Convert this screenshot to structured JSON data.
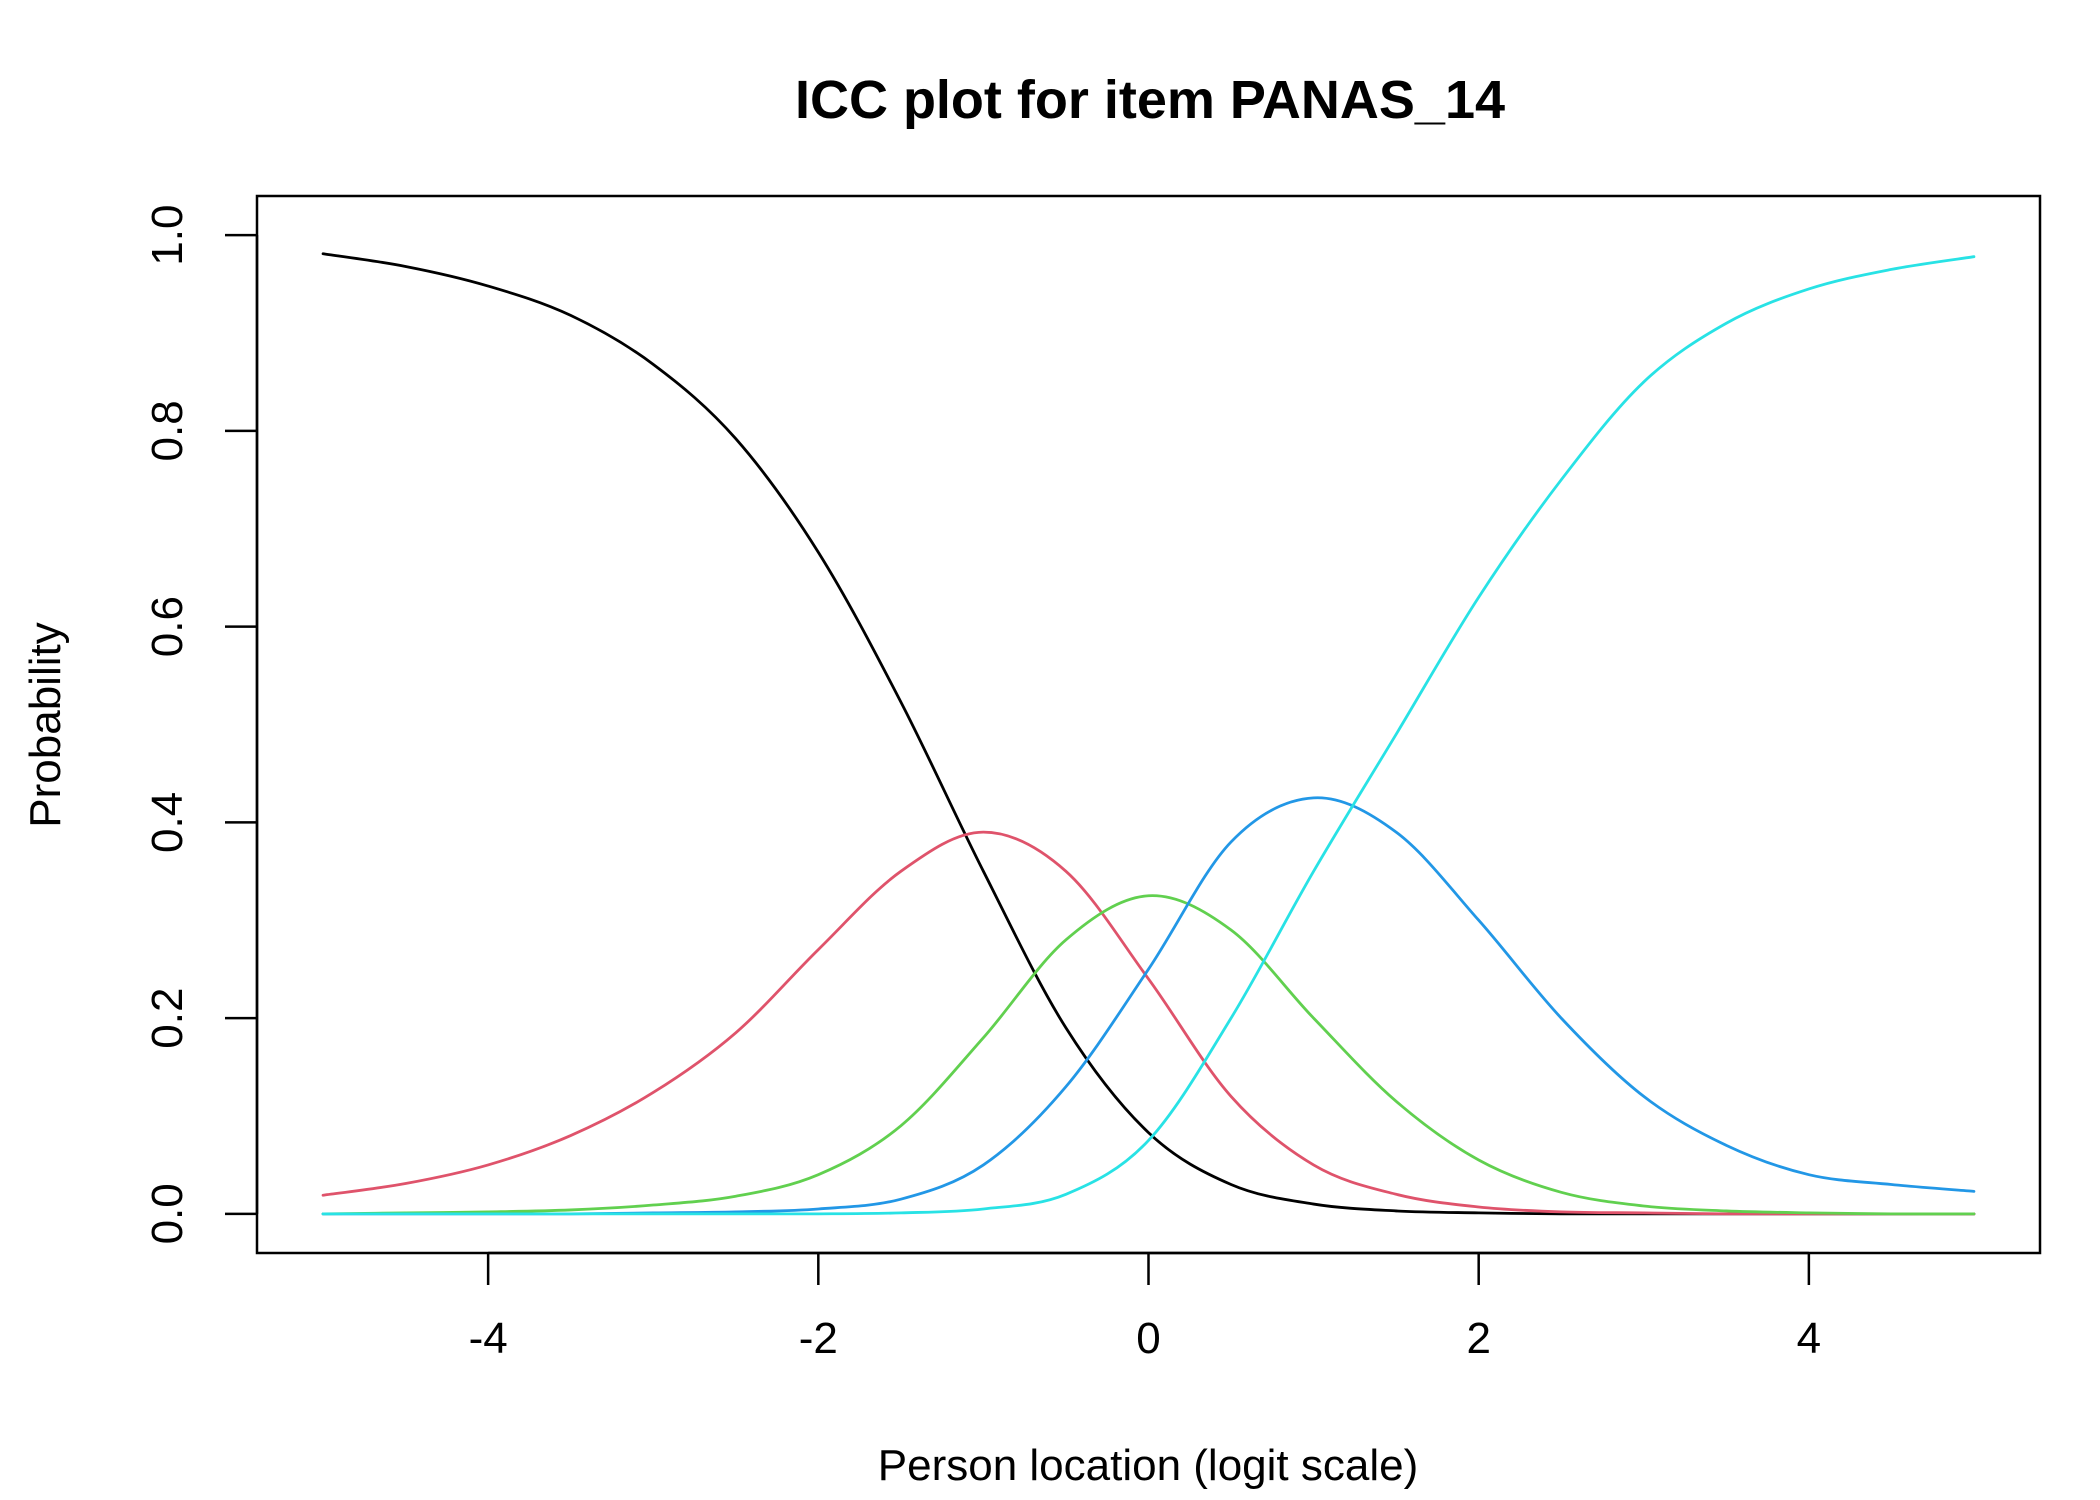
{
  "chart_data": {
    "type": "line",
    "title": "ICC plot for item PANAS_14",
    "xlabel": "Person location (logit scale)",
    "ylabel": "Probability",
    "xlim": [
      -5.4,
      5.4
    ],
    "ylim": [
      -0.04,
      1.04
    ],
    "x_ticks": [
      -4,
      -2,
      0,
      2,
      4
    ],
    "x_tick_labels": [
      "-4",
      "-2",
      "0",
      "2",
      "4"
    ],
    "y_ticks": [
      0.0,
      0.2,
      0.4,
      0.6,
      0.8,
      1.0
    ],
    "y_tick_labels": [
      "0.0",
      "0.2",
      "0.4",
      "0.6",
      "0.8",
      "1.0"
    ],
    "grid": false,
    "legend": "none",
    "x": [
      -5,
      -4.5,
      -4,
      -3.5,
      -3,
      -2.5,
      -2,
      -1.5,
      -1,
      -0.5,
      0,
      0.5,
      1,
      1.5,
      2,
      2.5,
      3,
      3.5,
      4,
      4.5,
      5
    ],
    "series": [
      {
        "color": "#000000",
        "values": [
          0.981,
          0.968,
          0.948,
          0.918,
          0.868,
          0.792,
          0.676,
          0.523,
          0.35,
          0.19,
          0.083,
          0.03,
          0.01,
          0.003,
          0.001,
          0.0,
          0.0,
          0.0,
          0.0,
          0.0,
          0.0
        ]
      },
      {
        "color": "#DF536B",
        "values": [
          0.019,
          0.031,
          0.05,
          0.08,
          0.124,
          0.185,
          0.27,
          0.35,
          0.39,
          0.35,
          0.24,
          0.12,
          0.05,
          0.02,
          0.007,
          0.002,
          0.001,
          0.0,
          0.0,
          0.0,
          0.0
        ]
      },
      {
        "color": "#61D04F",
        "values": [
          0.0,
          0.001,
          0.002,
          0.004,
          0.009,
          0.018,
          0.04,
          0.09,
          0.18,
          0.28,
          0.325,
          0.29,
          0.2,
          0.115,
          0.055,
          0.022,
          0.008,
          0.003,
          0.001,
          0.0,
          0.0
        ]
      },
      {
        "color": "#2297E6",
        "values": [
          0.0,
          0.0,
          0.0,
          0.0,
          0.001,
          0.002,
          0.005,
          0.015,
          0.05,
          0.13,
          0.25,
          0.38,
          0.425,
          0.39,
          0.3,
          0.2,
          0.12,
          0.07,
          0.04,
          0.03,
          0.023
        ]
      },
      {
        "color": "#28E2E5",
        "values": [
          0.0,
          0.0,
          0.0,
          0.0,
          0.0,
          0.0,
          0.0,
          0.001,
          0.005,
          0.02,
          0.075,
          0.2,
          0.35,
          0.49,
          0.63,
          0.75,
          0.85,
          0.91,
          0.945,
          0.965,
          0.978
        ]
      }
    ]
  }
}
